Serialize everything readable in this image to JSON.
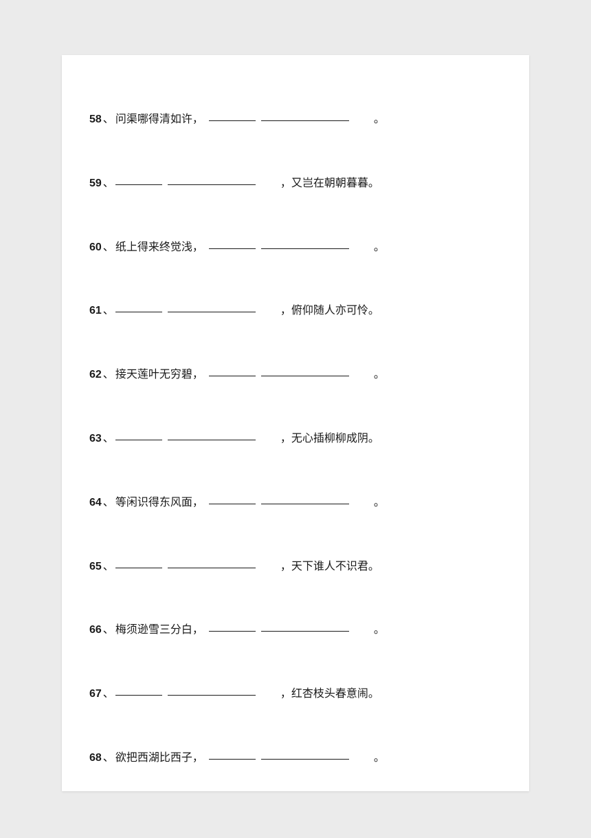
{
  "questions": [
    {
      "num": "58",
      "first": "问渠哪得清如许，",
      "second": "。",
      "blank_position": "after"
    },
    {
      "num": "59",
      "first": "，又岂在朝朝暮暮。",
      "second": "",
      "blank_position": "before"
    },
    {
      "num": "60",
      "first": "纸上得来终觉浅，",
      "second": "。",
      "blank_position": "after"
    },
    {
      "num": "61",
      "first": "，俯仰随人亦可怜。",
      "second": "",
      "blank_position": "before"
    },
    {
      "num": "62",
      "first": "接天莲叶无穷碧，",
      "second": "。",
      "blank_position": "after"
    },
    {
      "num": "63",
      "first": "，无心插柳柳成阴。",
      "second": "",
      "blank_position": "before"
    },
    {
      "num": "64",
      "first": "等闲识得东风面，",
      "second": "。",
      "blank_position": "after"
    },
    {
      "num": "65",
      "first": "，天下谁人不识君。",
      "second": "",
      "blank_position": "before"
    },
    {
      "num": "66",
      "first": "梅须逊雪三分白，",
      "second": "。",
      "blank_position": "after"
    },
    {
      "num": "67",
      "first": "，红杏枝头春意闹。",
      "second": "",
      "blank_position": "before"
    },
    {
      "num": "68",
      "first": "欲把西湖比西子，",
      "second": "。",
      "blank_position": "after"
    }
  ],
  "separator": "、"
}
